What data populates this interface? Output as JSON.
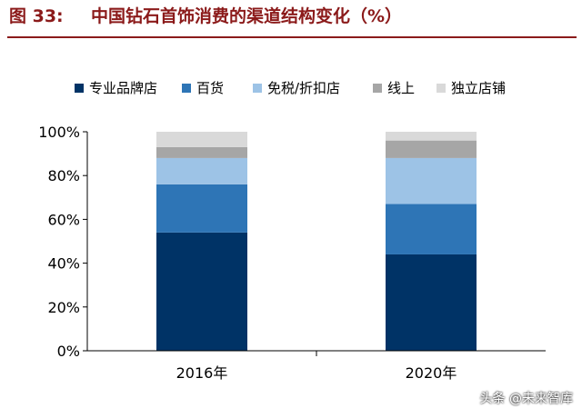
{
  "figure": {
    "label": "图 33:",
    "title": "中国钻石首饰消费的渠道结构变化（%）"
  },
  "chart_data": {
    "type": "bar",
    "stacked": true,
    "categories": [
      "2016年",
      "2020年"
    ],
    "series": [
      {
        "name": "专业品牌店",
        "color": "#003366",
        "values": [
          54,
          44
        ]
      },
      {
        "name": "百货",
        "color": "#2e75b6",
        "values": [
          22,
          23
        ]
      },
      {
        "name": "免税/折扣店",
        "color": "#9dc3e6",
        "values": [
          12,
          21
        ]
      },
      {
        "name": "线上",
        "color": "#a6a6a6",
        "values": [
          5,
          8
        ]
      },
      {
        "name": "独立店铺",
        "color": "#d9d9d9",
        "values": [
          7,
          4
        ]
      }
    ],
    "ylim": [
      0,
      100
    ],
    "yticks": [
      0,
      20,
      40,
      60,
      80,
      100
    ],
    "ytick_labels": [
      "0%",
      "20%",
      "40%",
      "60%",
      "80%",
      "100%"
    ],
    "grid": false,
    "legend_position": "top"
  },
  "watermark": "头条 @未来智库"
}
